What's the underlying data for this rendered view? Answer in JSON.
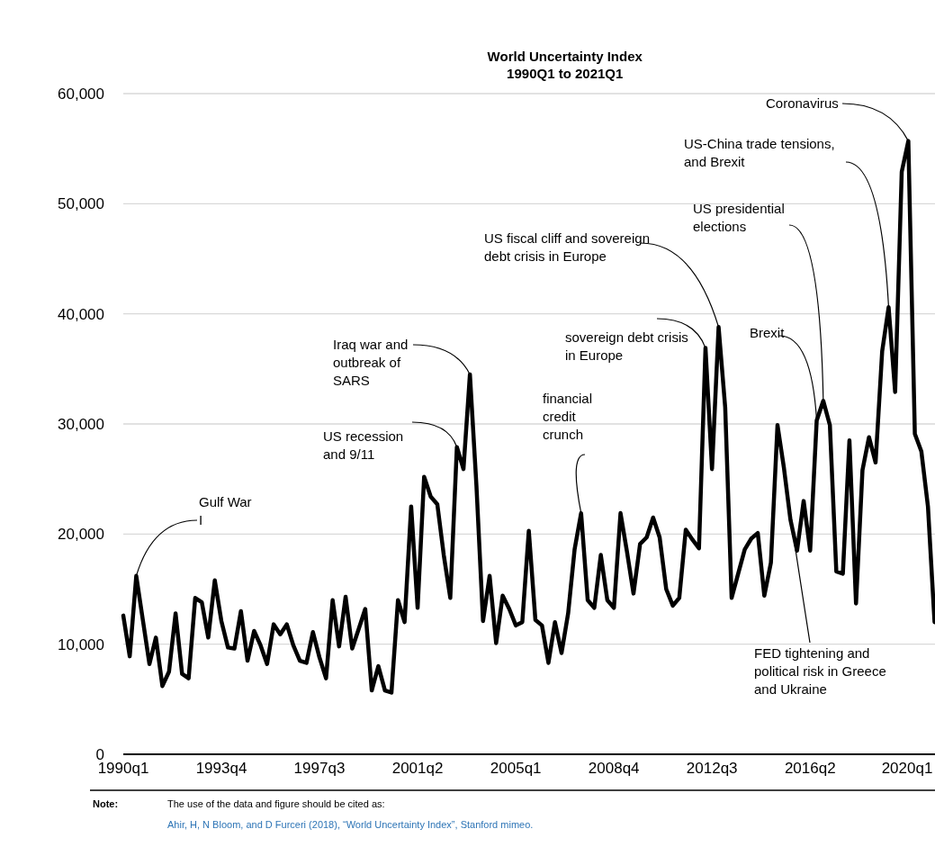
{
  "chart_data": {
    "type": "line",
    "title": "World Uncertainty Index",
    "subtitle": "1990Q1 to 2021Q1",
    "x": [
      "1990-01",
      "1990-04",
      "1990-07",
      "1990-10",
      "1991-01",
      "1991-04",
      "1991-07",
      "1991-10",
      "1992-01",
      "1992-04",
      "1992-07",
      "1992-10",
      "1993-01",
      "1993-04",
      "1993-07",
      "1993-10",
      "1994-01",
      "1994-04",
      "1994-07",
      "1994-10",
      "1995-01",
      "1995-04",
      "1995-07",
      "1995-10",
      "1996-01",
      "1996-04",
      "1996-07",
      "1996-10",
      "1997-01",
      "1997-04",
      "1997-07",
      "1997-10",
      "1998-01",
      "1998-04",
      "1998-07",
      "1998-10",
      "1999-01",
      "1999-04",
      "1999-07",
      "1999-10",
      "2000-01",
      "2000-04",
      "2000-07",
      "2000-10",
      "2001-01",
      "2001-04",
      "2001-07",
      "2001-10",
      "2002-01",
      "2002-04",
      "2002-07",
      "2002-10",
      "2003-01",
      "2003-04",
      "2003-07",
      "2003-10",
      "2004-01",
      "2004-04",
      "2004-07",
      "2004-10",
      "2005-01",
      "2005-04",
      "2005-07",
      "2005-10",
      "2006-01",
      "2006-04",
      "2006-07",
      "2006-10",
      "2007-01",
      "2007-04",
      "2007-07",
      "2007-10",
      "2008-01",
      "2008-04",
      "2008-07",
      "2008-10",
      "2009-01",
      "2009-04",
      "2009-07",
      "2009-10",
      "2010-01",
      "2010-04",
      "2010-07",
      "2010-10",
      "2011-01",
      "2011-04",
      "2011-07",
      "2011-10",
      "2012-01",
      "2012-04",
      "2012-07",
      "2012-10",
      "2013-01",
      "2013-04",
      "2013-07",
      "2013-10",
      "2014-01",
      "2014-04",
      "2014-07",
      "2014-10",
      "2015-01",
      "2015-04",
      "2015-07",
      "2015-10",
      "2016-01",
      "2016-04",
      "2016-07",
      "2016-10",
      "2017-01",
      "2017-04",
      "2017-07",
      "2017-10",
      "2018-01",
      "2018-04",
      "2018-07",
      "2018-10",
      "2019-01",
      "2019-04",
      "2019-07",
      "2019-10",
      "2020-01",
      "2020-04",
      "2020-07",
      "2020-10",
      "2021-01"
    ],
    "xlim": [
      "1990-01",
      "2021-01"
    ],
    "xticks": [
      {
        "value": "1990-01",
        "label": "1990q1"
      },
      {
        "value": "1993-10",
        "label": "1993q4"
      },
      {
        "value": "1997-07",
        "label": "1997q3"
      },
      {
        "value": "2001-04",
        "label": "2001q2"
      },
      {
        "value": "2005-01",
        "label": "2005q1"
      },
      {
        "value": "2008-10",
        "label": "2008q4"
      },
      {
        "value": "2012-07",
        "label": "2012q3"
      },
      {
        "value": "2016-04",
        "label": "2016q2"
      },
      {
        "value": "2020-01",
        "label": "2020q1"
      }
    ],
    "series": [
      {
        "color": "#000000",
        "values": [
          12600,
          8900,
          16200,
          12200,
          8200,
          10600,
          6200,
          7500,
          12800,
          7300,
          6900,
          14200,
          13800,
          10600,
          15800,
          12100,
          9700,
          9600,
          13000,
          8500,
          11200,
          9900,
          8200,
          11800,
          10900,
          11800,
          9900,
          8500,
          8300,
          11100,
          8800,
          6900,
          14000,
          9800,
          14300,
          9600,
          11400,
          13200,
          5800,
          8000,
          5800,
          5600,
          14000,
          12000,
          22500,
          13300,
          25200,
          23400,
          22700,
          18100,
          14200,
          27900,
          25900,
          34500,
          24400,
          12100,
          16200,
          10100,
          14400,
          13200,
          11700,
          12000,
          20300,
          12200,
          11700,
          8300,
          12000,
          9200,
          12800,
          18600,
          21900,
          14000,
          13300,
          18100,
          14000,
          13300,
          21900,
          18400,
          14600,
          19100,
          19700,
          21500,
          19700,
          15000,
          13500,
          14200,
          20400,
          19500,
          18700,
          36900,
          25900,
          38800,
          31500,
          14200,
          16400,
          18600,
          19600,
          20100,
          14400,
          17400,
          29900,
          26000,
          21300,
          18500,
          23000,
          18500,
          30300,
          32100,
          29900,
          16600,
          16400,
          28500,
          13700,
          25800,
          28800,
          26500,
          36600,
          40600,
          32900,
          52900,
          55700,
          29100,
          27500,
          22500,
          12000
        ]
      }
    ],
    "ylim": [
      0,
      60000
    ],
    "yticks": [
      0,
      {
        "value": 10000,
        "label": "10,000"
      },
      {
        "value": 20000,
        "label": "20,000"
      },
      {
        "value": 30000,
        "label": "30,000"
      },
      {
        "value": 40000,
        "label": "40,000"
      },
      {
        "value": 50000,
        "label": "50,000"
      },
      {
        "value": 60000,
        "label": "60,000"
      }
    ],
    "grid": "y",
    "marker": "none",
    "line_style": "solid",
    "annotations": [
      {
        "text": "Gulf War I",
        "x": "1990-07",
        "y": 16200
      },
      {
        "text": "US recession and 9/11",
        "x": "2002-10",
        "y": 27900
      },
      {
        "text": "Iraq war and outbreak of SARS",
        "x": "2003-04",
        "y": 34500
      },
      {
        "text": "financial credit crunch",
        "x": "2007-07",
        "y": 21900
      },
      {
        "text": "sovereign debt crisis in Europe",
        "x": "2012-04",
        "y": 36900
      },
      {
        "text": "US fiscal cliff and sovereign debt crisis in Europe",
        "x": "2012-10",
        "y": 38800
      },
      {
        "text": "Brexit",
        "x": "2016-07",
        "y": 30300
      },
      {
        "text": "US presidential elections",
        "x": "2016-10",
        "y": 32100
      },
      {
        "text": "US-China trade tensions, and Brexit",
        "x": "2019-04",
        "y": 40600
      },
      {
        "text": "Coronavirus",
        "x": "2020-01",
        "y": 55700
      },
      {
        "text": "FED tightening and political risk in Greece and Ukraine",
        "x": "2015-01",
        "y": 29900
      },
      "Note:",
      "The use of the data and figure should be cited as:",
      "Ahir, H, N Bloom, and D Furceri (2018), “World Uncertainty Index”, Stanford mimeo."
    ]
  }
}
